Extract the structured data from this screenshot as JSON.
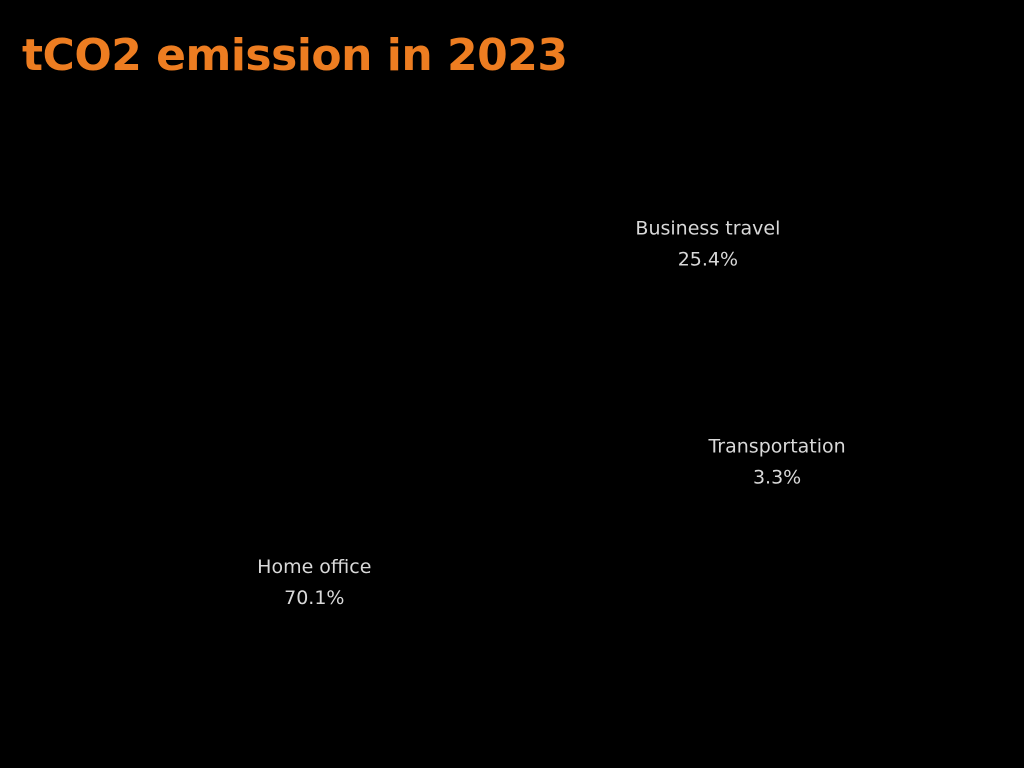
{
  "chart_data": {
    "type": "pie",
    "title": "tCO2 emission in 2023",
    "categories": [
      "Business travel",
      "Transportation",
      "Home office"
    ],
    "values": [
      25.4,
      3.3,
      70.1
    ],
    "value_labels": [
      "25.4%",
      "3.3%",
      "70.1%"
    ],
    "unit": "%",
    "legend": "none",
    "colors": {
      "title": "#ed7d21",
      "label": "#d9d9d9",
      "background": "#000000"
    }
  }
}
